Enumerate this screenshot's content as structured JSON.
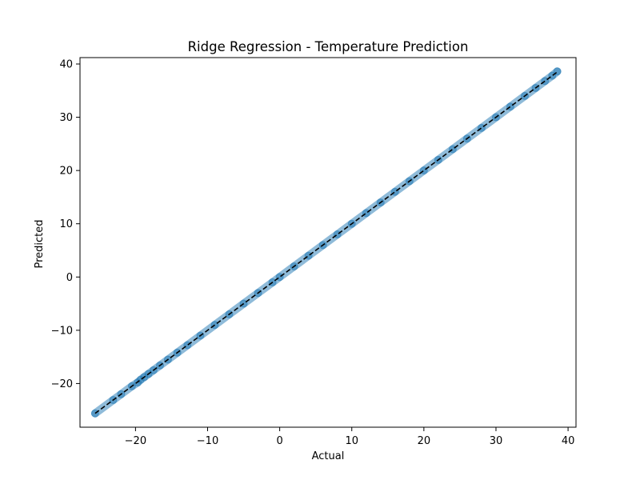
{
  "chart_data": {
    "type": "scatter",
    "title": "Ridge Regression - Temperature Prediction",
    "xlabel": "Actual",
    "ylabel": "Predicted",
    "xlim": [
      -27.7,
      41.1
    ],
    "ylim": [
      -28.2,
      41.2
    ],
    "xticks": [
      -20,
      -10,
      0,
      10,
      20,
      30,
      40
    ],
    "yticks": [
      -20,
      -10,
      0,
      10,
      20,
      30,
      40
    ],
    "xtick_labels": [
      "−20",
      "−10",
      "0",
      "10",
      "20",
      "30",
      "40"
    ],
    "ytick_labels": [
      "−20",
      "−10",
      "0",
      "10",
      "20",
      "30",
      "40"
    ],
    "point_color": "#1f77b4",
    "point_alpha": 0.5,
    "line_color": "#000000",
    "grid": false,
    "series": [
      {
        "type": "scatter",
        "x": [
          -25.6,
          -23.1,
          -22.0,
          -20.5,
          -19.7,
          -19.3,
          -18.8,
          -18.2,
          -17.5,
          -16.6,
          -15.5,
          -14.2,
          -12.8,
          -11.0,
          -9.0,
          -7.0,
          -5.0,
          -3.0,
          -1.0,
          0.0,
          2.0,
          4.0,
          6.0,
          8.0,
          10.0,
          12.0,
          14.0,
          16.0,
          18.0,
          20.0,
          22.0,
          24.0,
          26.0,
          28.0,
          30.0,
          32.0,
          34.0,
          35.5,
          36.8,
          37.8,
          38.5
        ],
        "y": [
          -25.6,
          -23.1,
          -22.0,
          -20.5,
          -19.8,
          -19.3,
          -18.8,
          -18.2,
          -17.5,
          -16.6,
          -15.5,
          -14.2,
          -12.8,
          -11.0,
          -9.0,
          -7.0,
          -5.0,
          -3.0,
          -1.0,
          0.0,
          2.0,
          4.0,
          6.0,
          8.0,
          10.0,
          12.0,
          14.0,
          16.0,
          18.0,
          20.0,
          22.0,
          24.0,
          26.0,
          28.0,
          30.0,
          32.0,
          34.0,
          35.5,
          36.8,
          37.8,
          38.6
        ]
      },
      {
        "type": "line",
        "style": "dashed",
        "x": [
          -25.6,
          38.5
        ],
        "y": [
          -25.6,
          38.5
        ]
      }
    ]
  }
}
